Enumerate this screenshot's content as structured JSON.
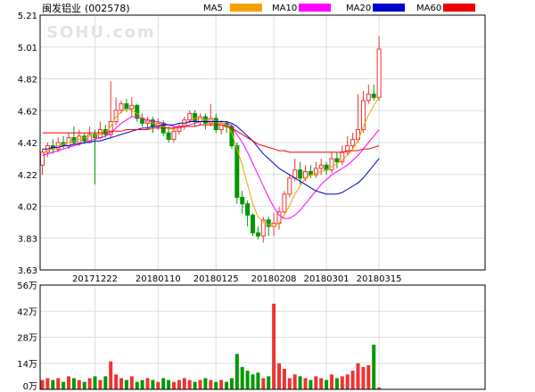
{
  "chart_data": {
    "type": "candlestick",
    "title": "闽发铝业",
    "code": "(002578)",
    "watermark": "SOHU.com",
    "legend": [
      {
        "name": "MA5",
        "color": "#f5a000"
      },
      {
        "name": "MA10",
        "color": "#ff00ff"
      },
      {
        "name": "MA20",
        "color": "#0000cc"
      },
      {
        "name": "MA60",
        "color": "#ee0000"
      }
    ],
    "colors": {
      "up": "#ee3333",
      "down": "#009900",
      "grid": "#dddddd",
      "frame": "#000000"
    },
    "price_axis": {
      "ylim": [
        3.63,
        5.21
      ],
      "ticks": [
        "5.21",
        "5.01",
        "4.82",
        "4.62",
        "4.42",
        "4.22",
        "4.02",
        "3.83",
        "3.63"
      ]
    },
    "date_ticks": [
      {
        "label": "20171222",
        "index": 10
      },
      {
        "label": "20180110",
        "index": 22
      },
      {
        "label": "20180125",
        "index": 33
      },
      {
        "label": "20180208",
        "index": 44
      },
      {
        "label": "20180301",
        "index": 54
      },
      {
        "label": "20180315",
        "index": 64
      }
    ],
    "volume_axis": {
      "ylim": [
        0,
        56
      ],
      "ticks": [
        "56万",
        "42万",
        "28万",
        "14万",
        "0万"
      ]
    },
    "candles": [
      [
        4.28,
        4.36,
        4.38,
        4.22
      ],
      [
        4.36,
        4.4,
        4.42,
        4.33
      ],
      [
        4.4,
        4.38,
        4.44,
        4.35
      ],
      [
        4.38,
        4.42,
        4.45,
        4.36
      ],
      [
        4.42,
        4.4,
        4.46,
        4.38
      ],
      [
        4.4,
        4.45,
        4.48,
        4.38
      ],
      [
        4.45,
        4.42,
        4.52,
        4.4
      ],
      [
        4.42,
        4.46,
        4.5,
        4.4
      ],
      [
        4.46,
        4.43,
        4.48,
        4.41
      ],
      [
        4.43,
        4.47,
        4.52,
        4.42
      ],
      [
        4.47,
        4.45,
        4.5,
        4.16
      ],
      [
        4.45,
        4.5,
        4.55,
        4.44
      ],
      [
        4.5,
        4.47,
        4.53,
        4.45
      ],
      [
        4.47,
        4.55,
        4.8,
        4.45
      ],
      [
        4.55,
        4.62,
        4.7,
        4.53
      ],
      [
        4.62,
        4.66,
        4.68,
        4.6
      ],
      [
        4.66,
        4.63,
        4.69,
        4.61
      ],
      [
        4.63,
        4.65,
        4.7,
        4.58
      ],
      [
        4.65,
        4.57,
        4.66,
        4.55
      ],
      [
        4.57,
        4.54,
        4.6,
        4.52
      ],
      [
        4.54,
        4.56,
        4.58,
        4.5
      ],
      [
        4.56,
        4.52,
        4.58,
        4.48
      ],
      [
        4.52,
        4.54,
        4.57,
        4.5
      ],
      [
        4.54,
        4.48,
        4.56,
        4.46
      ],
      [
        4.48,
        4.44,
        4.52,
        4.42
      ],
      [
        4.44,
        4.49,
        4.52,
        4.42
      ],
      [
        4.49,
        4.52,
        4.54,
        4.47
      ],
      [
        4.52,
        4.56,
        4.58,
        4.5
      ],
      [
        4.56,
        4.6,
        4.62,
        4.54
      ],
      [
        4.6,
        4.55,
        4.62,
        4.52
      ],
      [
        4.55,
        4.58,
        4.6,
        4.53
      ],
      [
        4.58,
        4.54,
        4.6,
        4.5
      ],
      [
        4.54,
        4.57,
        4.66,
        4.52
      ],
      [
        4.57,
        4.5,
        4.6,
        4.48
      ],
      [
        4.5,
        4.54,
        4.56,
        4.47
      ],
      [
        4.54,
        4.52,
        4.55,
        4.48
      ],
      [
        4.52,
        4.4,
        4.54,
        4.38
      ],
      [
        4.4,
        4.08,
        4.42,
        4.04
      ],
      [
        4.08,
        4.04,
        4.12,
        3.98
      ],
      [
        4.04,
        3.97,
        4.06,
        3.9
      ],
      [
        3.97,
        3.86,
        3.98,
        3.84
      ],
      [
        3.86,
        3.84,
        3.9,
        3.82
      ],
      [
        3.84,
        3.94,
        3.96,
        3.8
      ],
      [
        3.94,
        3.9,
        3.96,
        3.84
      ],
      [
        3.9,
        3.92,
        3.98,
        3.84
      ],
      [
        3.92,
        3.99,
        4.02,
        3.88
      ],
      [
        3.99,
        4.1,
        4.12,
        3.98
      ],
      [
        4.1,
        4.2,
        4.22,
        4.08
      ],
      [
        4.2,
        4.25,
        4.32,
        4.18
      ],
      [
        4.25,
        4.2,
        4.3,
        4.16
      ],
      [
        4.2,
        4.24,
        4.28,
        4.18
      ],
      [
        4.24,
        4.22,
        4.28,
        4.2
      ],
      [
        4.22,
        4.26,
        4.3,
        4.2
      ],
      [
        4.26,
        4.28,
        4.32,
        4.22
      ],
      [
        4.28,
        4.25,
        4.3,
        4.22
      ],
      [
        4.25,
        4.32,
        4.36,
        4.23
      ],
      [
        4.32,
        4.3,
        4.36,
        4.26
      ],
      [
        4.3,
        4.36,
        4.4,
        4.28
      ],
      [
        4.36,
        4.4,
        4.46,
        4.34
      ],
      [
        4.4,
        4.44,
        4.48,
        4.38
      ],
      [
        4.44,
        4.5,
        4.72,
        4.42
      ],
      [
        4.5,
        4.68,
        4.74,
        4.48
      ],
      [
        4.68,
        4.72,
        4.78,
        4.66
      ],
      [
        4.72,
        4.7,
        4.78,
        4.68
      ],
      [
        4.7,
        5.0,
        5.08,
        4.68
      ]
    ],
    "ma5": [
      4.35,
      4.37,
      4.38,
      4.4,
      4.41,
      4.42,
      4.43,
      4.44,
      4.45,
      4.46,
      4.46,
      4.47,
      4.48,
      4.52,
      4.58,
      4.61,
      4.63,
      4.62,
      4.6,
      4.58,
      4.55,
      4.54,
      4.53,
      4.52,
      4.51,
      4.5,
      4.51,
      4.53,
      4.55,
      4.57,
      4.57,
      4.56,
      4.56,
      4.55,
      4.54,
      4.53,
      4.48,
      4.38,
      4.28,
      4.16,
      4.04,
      3.96,
      3.93,
      3.91,
      3.9,
      3.92,
      3.97,
      4.03,
      4.1,
      4.15,
      4.2,
      4.22,
      4.23,
      4.24,
      4.25,
      4.27,
      4.29,
      4.31,
      4.34,
      4.38,
      4.43,
      4.52,
      4.59,
      4.65,
      4.7
    ],
    "ma10": [
      4.34,
      4.35,
      4.36,
      4.37,
      4.38,
      4.39,
      4.4,
      4.41,
      4.42,
      4.43,
      4.44,
      4.45,
      4.46,
      4.48,
      4.51,
      4.54,
      4.56,
      4.58,
      4.58,
      4.57,
      4.56,
      4.55,
      4.55,
      4.54,
      4.53,
      4.52,
      4.51,
      4.52,
      4.53,
      4.54,
      4.55,
      4.55,
      4.55,
      4.55,
      4.55,
      4.55,
      4.52,
      4.47,
      4.42,
      4.36,
      4.29,
      4.22,
      4.15,
      4.08,
      4.02,
      3.97,
      3.95,
      3.95,
      3.97,
      4.0,
      4.04,
      4.08,
      4.12,
      4.16,
      4.19,
      4.22,
      4.24,
      4.26,
      4.28,
      4.31,
      4.34,
      4.38,
      4.42,
      4.46,
      4.5
    ],
    "ma20": [
      4.38,
      4.38,
      4.39,
      4.39,
      4.4,
      4.4,
      4.41,
      4.41,
      4.42,
      4.42,
      4.43,
      4.43,
      4.44,
      4.45,
      4.46,
      4.47,
      4.48,
      4.49,
      4.5,
      4.51,
      4.51,
      4.52,
      4.52,
      4.53,
      4.53,
      4.53,
      4.54,
      4.54,
      4.55,
      4.55,
      4.55,
      4.55,
      4.55,
      4.55,
      4.55,
      4.55,
      4.54,
      4.52,
      4.49,
      4.46,
      4.43,
      4.39,
      4.35,
      4.32,
      4.29,
      4.26,
      4.24,
      4.22,
      4.2,
      4.18,
      4.16,
      4.14,
      4.12,
      4.11,
      4.1,
      4.1,
      4.1,
      4.11,
      4.13,
      4.15,
      4.17,
      4.2,
      4.24,
      4.28,
      4.32
    ],
    "ma60": [
      4.48,
      4.48,
      4.48,
      4.48,
      4.48,
      4.48,
      4.48,
      4.48,
      4.48,
      4.48,
      4.48,
      4.48,
      4.48,
      4.49,
      4.49,
      4.49,
      4.5,
      4.5,
      4.5,
      4.5,
      4.5,
      4.51,
      4.51,
      4.51,
      4.51,
      4.51,
      4.52,
      4.52,
      4.52,
      4.52,
      4.53,
      4.53,
      4.53,
      4.53,
      4.53,
      4.52,
      4.51,
      4.49,
      4.47,
      4.45,
      4.43,
      4.41,
      4.4,
      4.39,
      4.38,
      4.37,
      4.37,
      4.36,
      4.36,
      4.36,
      4.36,
      4.36,
      4.36,
      4.36,
      4.36,
      4.36,
      4.36,
      4.36,
      4.37,
      4.37,
      4.37,
      4.38,
      4.38,
      4.39,
      4.4
    ],
    "volume": [
      5,
      6,
      5,
      6,
      4,
      7,
      6,
      5,
      4,
      6,
      7,
      5,
      7,
      15,
      8,
      6,
      5,
      7,
      4,
      5,
      6,
      5,
      4,
      6,
      5,
      4,
      5,
      6,
      5,
      4,
      5,
      6,
      5,
      4,
      5,
      4,
      6,
      19,
      12,
      10,
      8,
      9,
      6,
      7,
      46,
      14,
      11,
      6,
      8,
      7,
      6,
      5,
      7,
      6,
      5,
      8,
      6,
      7,
      8,
      10,
      14,
      12,
      13,
      24,
      1
    ]
  }
}
